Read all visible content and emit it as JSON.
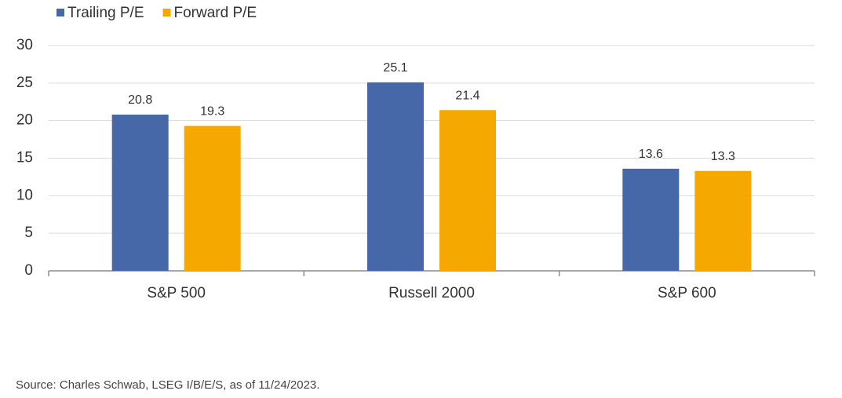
{
  "chart_data": {
    "type": "bar",
    "categories": [
      "S&P 500",
      "Russell 2000",
      "S&P 600"
    ],
    "series": [
      {
        "name": "Trailing P/E",
        "color": "#4668a8",
        "values": [
          20.8,
          25.1,
          13.6
        ]
      },
      {
        "name": "Forward P/E",
        "color": "#f5a800",
        "values": [
          19.3,
          21.4,
          13.3
        ]
      }
    ],
    "ylim": [
      0,
      30
    ],
    "yticks": [
      0,
      5,
      10,
      15,
      20,
      25,
      30
    ],
    "grid": true,
    "legend": "top-left",
    "source": "Source: Charles Schwab, LSEG I/B/E/S, as of 11/24/2023."
  }
}
